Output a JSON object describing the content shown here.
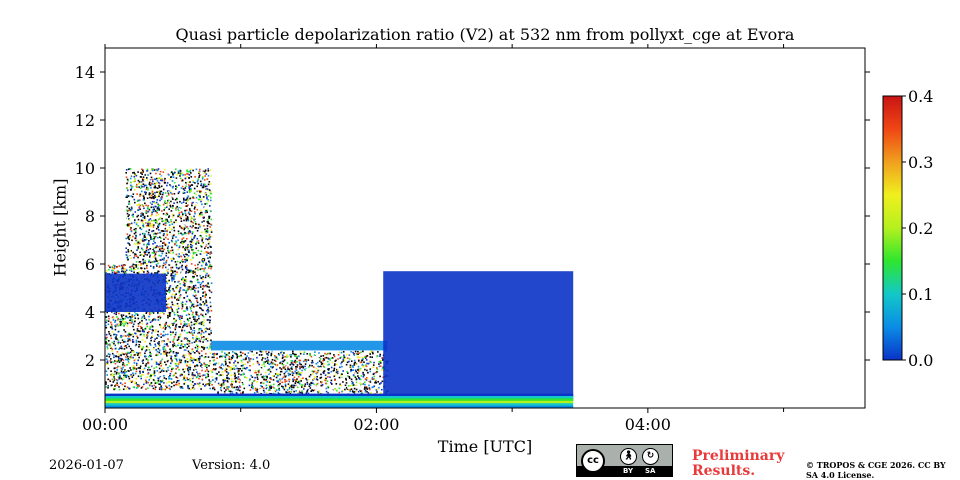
{
  "chart_data": {
    "type": "heatmap",
    "title": "Quasi particle depolarization ratio (V2) at 532 nm from pollyxt_cge at Evora",
    "xlabel": "Time [UTC]",
    "ylabel": "Height [km]",
    "xlim_hours": [
      0,
      5.6
    ],
    "ylim_km": [
      0,
      15
    ],
    "x_ticks": [
      {
        "hours": 0,
        "label": "00:00"
      },
      {
        "hours": 2,
        "label": "02:00"
      },
      {
        "hours": 4,
        "label": "04:00"
      }
    ],
    "y_ticks": [
      {
        "km": 2,
        "label": "2"
      },
      {
        "km": 4,
        "label": "4"
      },
      {
        "km": 6,
        "label": "6"
      },
      {
        "km": 8,
        "label": "8"
      },
      {
        "km": 10,
        "label": "10"
      },
      {
        "km": 12,
        "label": "12"
      },
      {
        "km": 14,
        "label": "14"
      }
    ],
    "colorbar": {
      "min": 0.0,
      "max": 0.4,
      "ticks": [
        {
          "value": 0.0,
          "label": "0.0"
        },
        {
          "value": 0.1,
          "label": "0.1"
        },
        {
          "value": 0.2,
          "label": "0.2"
        },
        {
          "value": 0.3,
          "label": "0.3"
        },
        {
          "value": 0.4,
          "label": "0.4"
        }
      ],
      "colormap": [
        "#0a33c8",
        "#0a8ce6",
        "#12c8c8",
        "#2ee62e",
        "#b4f01e",
        "#f0f01e",
        "#f0a01e",
        "#f04614",
        "#c81414"
      ]
    },
    "regions": [
      {
        "name": "noisy aerosol & cloud column",
        "t_start": 0.0,
        "t_end": 0.78,
        "z_bottom": 0.8,
        "z_top": 6.0,
        "value": 0.0,
        "style": "speckle"
      },
      {
        "name": "high cloud speckle",
        "t_start": 0.15,
        "t_end": 0.78,
        "z_bottom": 6.0,
        "z_top": 10.0,
        "value": 0.0,
        "style": "speckle"
      },
      {
        "name": "low-depol layer top edge",
        "t_start": 0.0,
        "t_end": 0.45,
        "z_bottom": 4.0,
        "z_top": 5.6,
        "value": 0.02,
        "style": "solid"
      },
      {
        "name": "thin blue aerosol layer",
        "t_start": 0.78,
        "t_end": 2.08,
        "z_bottom": 2.4,
        "z_top": 2.8,
        "value": 0.03,
        "style": "solid"
      },
      {
        "name": "dark low-signal band",
        "t_start": 0.78,
        "t_end": 2.08,
        "z_bottom": 0.6,
        "z_top": 2.4,
        "value": 0.0,
        "style": "speckle"
      },
      {
        "name": "blue aerosol plume",
        "t_start": 2.05,
        "t_end": 3.45,
        "z_bottom": 0.3,
        "z_top": 5.7,
        "value": 0.02,
        "style": "solid"
      },
      {
        "name": "near-surface layer",
        "t_start": 0.0,
        "t_end": 3.45,
        "z_bottom": 0.0,
        "z_top": 0.6,
        "value": 0.15,
        "style": "gradient"
      }
    ],
    "data_end_hours": 3.45
  },
  "footer": {
    "date": "2026-01-07",
    "version": "Version: 4.0",
    "license_badge": {
      "cc": "cc",
      "by": "BY",
      "sa": "SA"
    },
    "preliminary": "Preliminary Results.",
    "copyright": "© TROPOS & CGE 2026. CC BY SA 4.0 License."
  }
}
